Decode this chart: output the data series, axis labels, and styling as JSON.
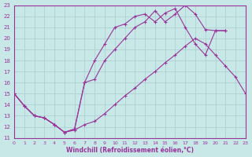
{
  "xlabel": "Windchill (Refroidissement éolien,°C)",
  "xlim": [
    0,
    23
  ],
  "ylim": [
    11,
    23
  ],
  "xticks": [
    0,
    1,
    2,
    3,
    4,
    5,
    6,
    7,
    8,
    9,
    10,
    11,
    12,
    13,
    14,
    15,
    16,
    17,
    18,
    19,
    20,
    21,
    22,
    23
  ],
  "yticks": [
    11,
    12,
    13,
    14,
    15,
    16,
    17,
    18,
    19,
    20,
    21,
    22,
    23
  ],
  "bg_color": "#c8e8e8",
  "line_color": "#993399",
  "grid_color": "#aacccc",
  "line1_x": [
    0,
    1,
    2,
    3,
    4,
    5,
    6,
    7,
    8,
    9,
    10,
    11,
    12,
    13,
    14,
    15,
    16,
    17,
    18,
    19,
    20,
    21,
    22,
    23
  ],
  "line1_y": [
    15.0,
    13.9,
    13.0,
    12.8,
    12.2,
    11.5,
    11.7,
    12.2,
    12.5,
    13.2,
    14.0,
    14.8,
    15.5,
    16.3,
    17.0,
    17.8,
    18.5,
    19.3,
    20.0,
    19.5,
    18.5,
    17.5,
    16.5,
    15.0
  ],
  "line2_x": [
    0,
    1,
    2,
    3,
    4,
    5,
    6,
    7,
    8,
    9,
    10,
    11,
    12,
    13,
    14,
    15,
    16,
    17,
    18,
    19,
    20,
    21
  ],
  "line2_y": [
    15.0,
    13.9,
    13.0,
    12.8,
    12.2,
    11.5,
    11.8,
    16.0,
    16.3,
    18.0,
    19.0,
    20.0,
    21.0,
    21.5,
    22.5,
    21.5,
    22.2,
    23.0,
    22.2,
    20.8,
    20.7,
    20.7
  ],
  "line3_x": [
    0,
    1,
    2,
    3,
    4,
    5,
    6,
    7,
    8,
    9,
    10,
    11,
    12,
    13,
    14,
    15,
    16,
    17,
    18,
    19,
    20,
    21
  ],
  "line3_y": [
    15.0,
    13.9,
    13.0,
    12.8,
    12.2,
    11.5,
    11.8,
    16.0,
    18.0,
    19.5,
    21.0,
    21.3,
    22.0,
    22.2,
    21.5,
    22.3,
    22.7,
    21.0,
    19.5,
    18.5,
    20.7,
    20.7
  ]
}
